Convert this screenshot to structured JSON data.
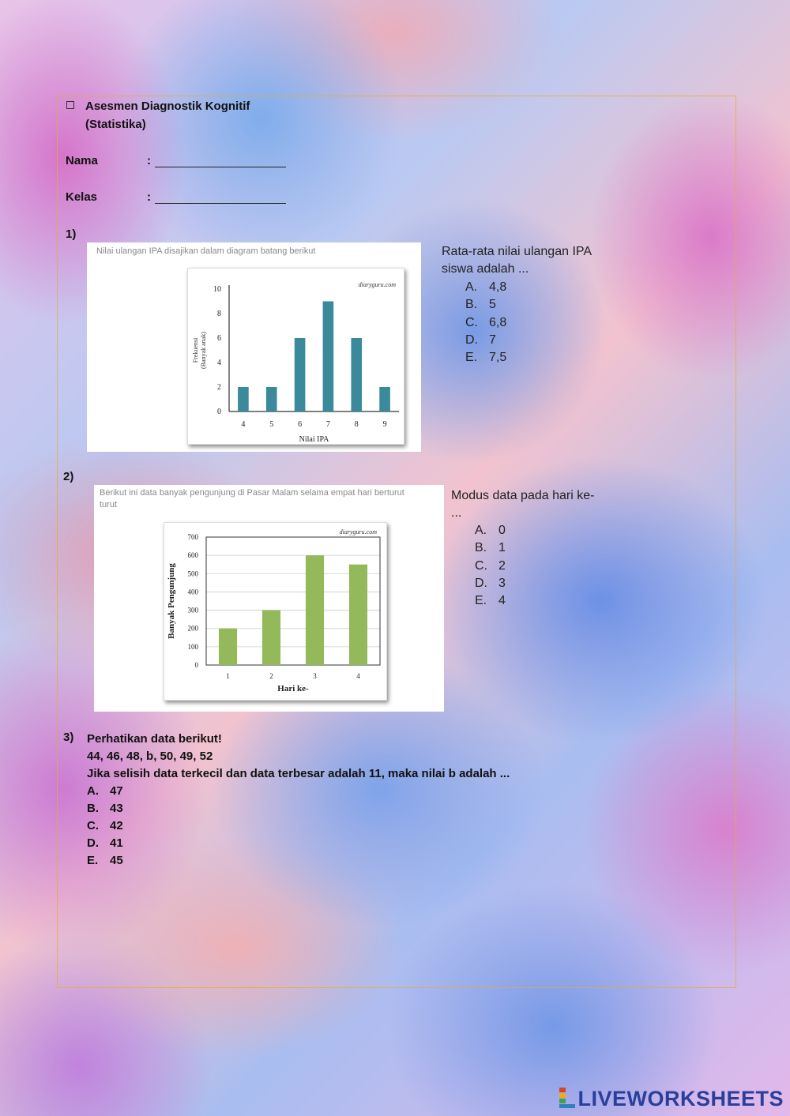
{
  "header": {
    "title_line1": "Asesmen Diagnostik Kognitif",
    "title_line2": "(Statistika)",
    "name_label": "Nama",
    "class_label": "Kelas",
    "colon": ":"
  },
  "q1": {
    "number": "1)",
    "caption": "Nilai ulangan IPA disajikan dalam diagram batang berikut",
    "question_line1": "Rata-rata nilai ulangan IPA",
    "question_line2": "siswa adalah ...",
    "options": [
      {
        "letter": "A.",
        "text": "4,8"
      },
      {
        "letter": "B.",
        "text": "5"
      },
      {
        "letter": "C.",
        "text": "6,8"
      },
      {
        "letter": "D.",
        "text": "7"
      },
      {
        "letter": "E.",
        "text": "7,5"
      }
    ]
  },
  "q2": {
    "number": "2)",
    "caption_line1": "Berikut ini data banyak pengunjung di Pasar Malam selama empat hari berturut",
    "caption_line2": "turut",
    "question_line1": "Modus data pada hari ke-",
    "question_line2": "...",
    "options": [
      {
        "letter": "A.",
        "text": "0"
      },
      {
        "letter": "B.",
        "text": "1"
      },
      {
        "letter": "C.",
        "text": "2"
      },
      {
        "letter": "D.",
        "text": "3"
      },
      {
        "letter": "E.",
        "text": "4"
      }
    ]
  },
  "q3": {
    "number": "3)",
    "line1": "Perhatikan data berikut!",
    "line2": "44, 46, 48, b, 50, 49, 52",
    "line3": "Jika selisih data terkecil dan data terbesar adalah 11, maka nilai b adalah ...",
    "options": [
      {
        "letter": "A.",
        "text": "47"
      },
      {
        "letter": "B.",
        "text": "43"
      },
      {
        "letter": "C.",
        "text": "42"
      },
      {
        "letter": "D.",
        "text": "41"
      },
      {
        "letter": "E.",
        "text": "45"
      }
    ]
  },
  "chart_data": [
    {
      "type": "bar",
      "categories": [
        "4",
        "5",
        "6",
        "7",
        "8",
        "9"
      ],
      "values": [
        2,
        2,
        6,
        9,
        6,
        2
      ],
      "xlabel": "Nilai IPA",
      "ylabel_line1": "Frekuensi",
      "ylabel_line2": "(Banyak anak)",
      "yticks": [
        "0",
        "2",
        "4",
        "6",
        "8",
        "10"
      ],
      "ylim": [
        0,
        10
      ],
      "watermark": "diaryguru.com",
      "color": "#3a8a9c",
      "grid": false
    },
    {
      "type": "bar",
      "categories": [
        "1",
        "2",
        "3",
        "4"
      ],
      "values": [
        200,
        300,
        600,
        550
      ],
      "xlabel": "Hari ke-",
      "ylabel": "Banyak Pengunjung",
      "yticks": [
        "0",
        "100",
        "200",
        "300",
        "400",
        "500",
        "600",
        "700"
      ],
      "ylim": [
        0,
        700
      ],
      "watermark": "diaryguru.com",
      "color": "#93b95a",
      "grid": true
    }
  ],
  "footer": {
    "logo_text": "LIVEWORKSHEETS",
    "logo_colors": [
      "#d9412f",
      "#f2a81d",
      "#41a349",
      "#2f7fc1"
    ]
  }
}
